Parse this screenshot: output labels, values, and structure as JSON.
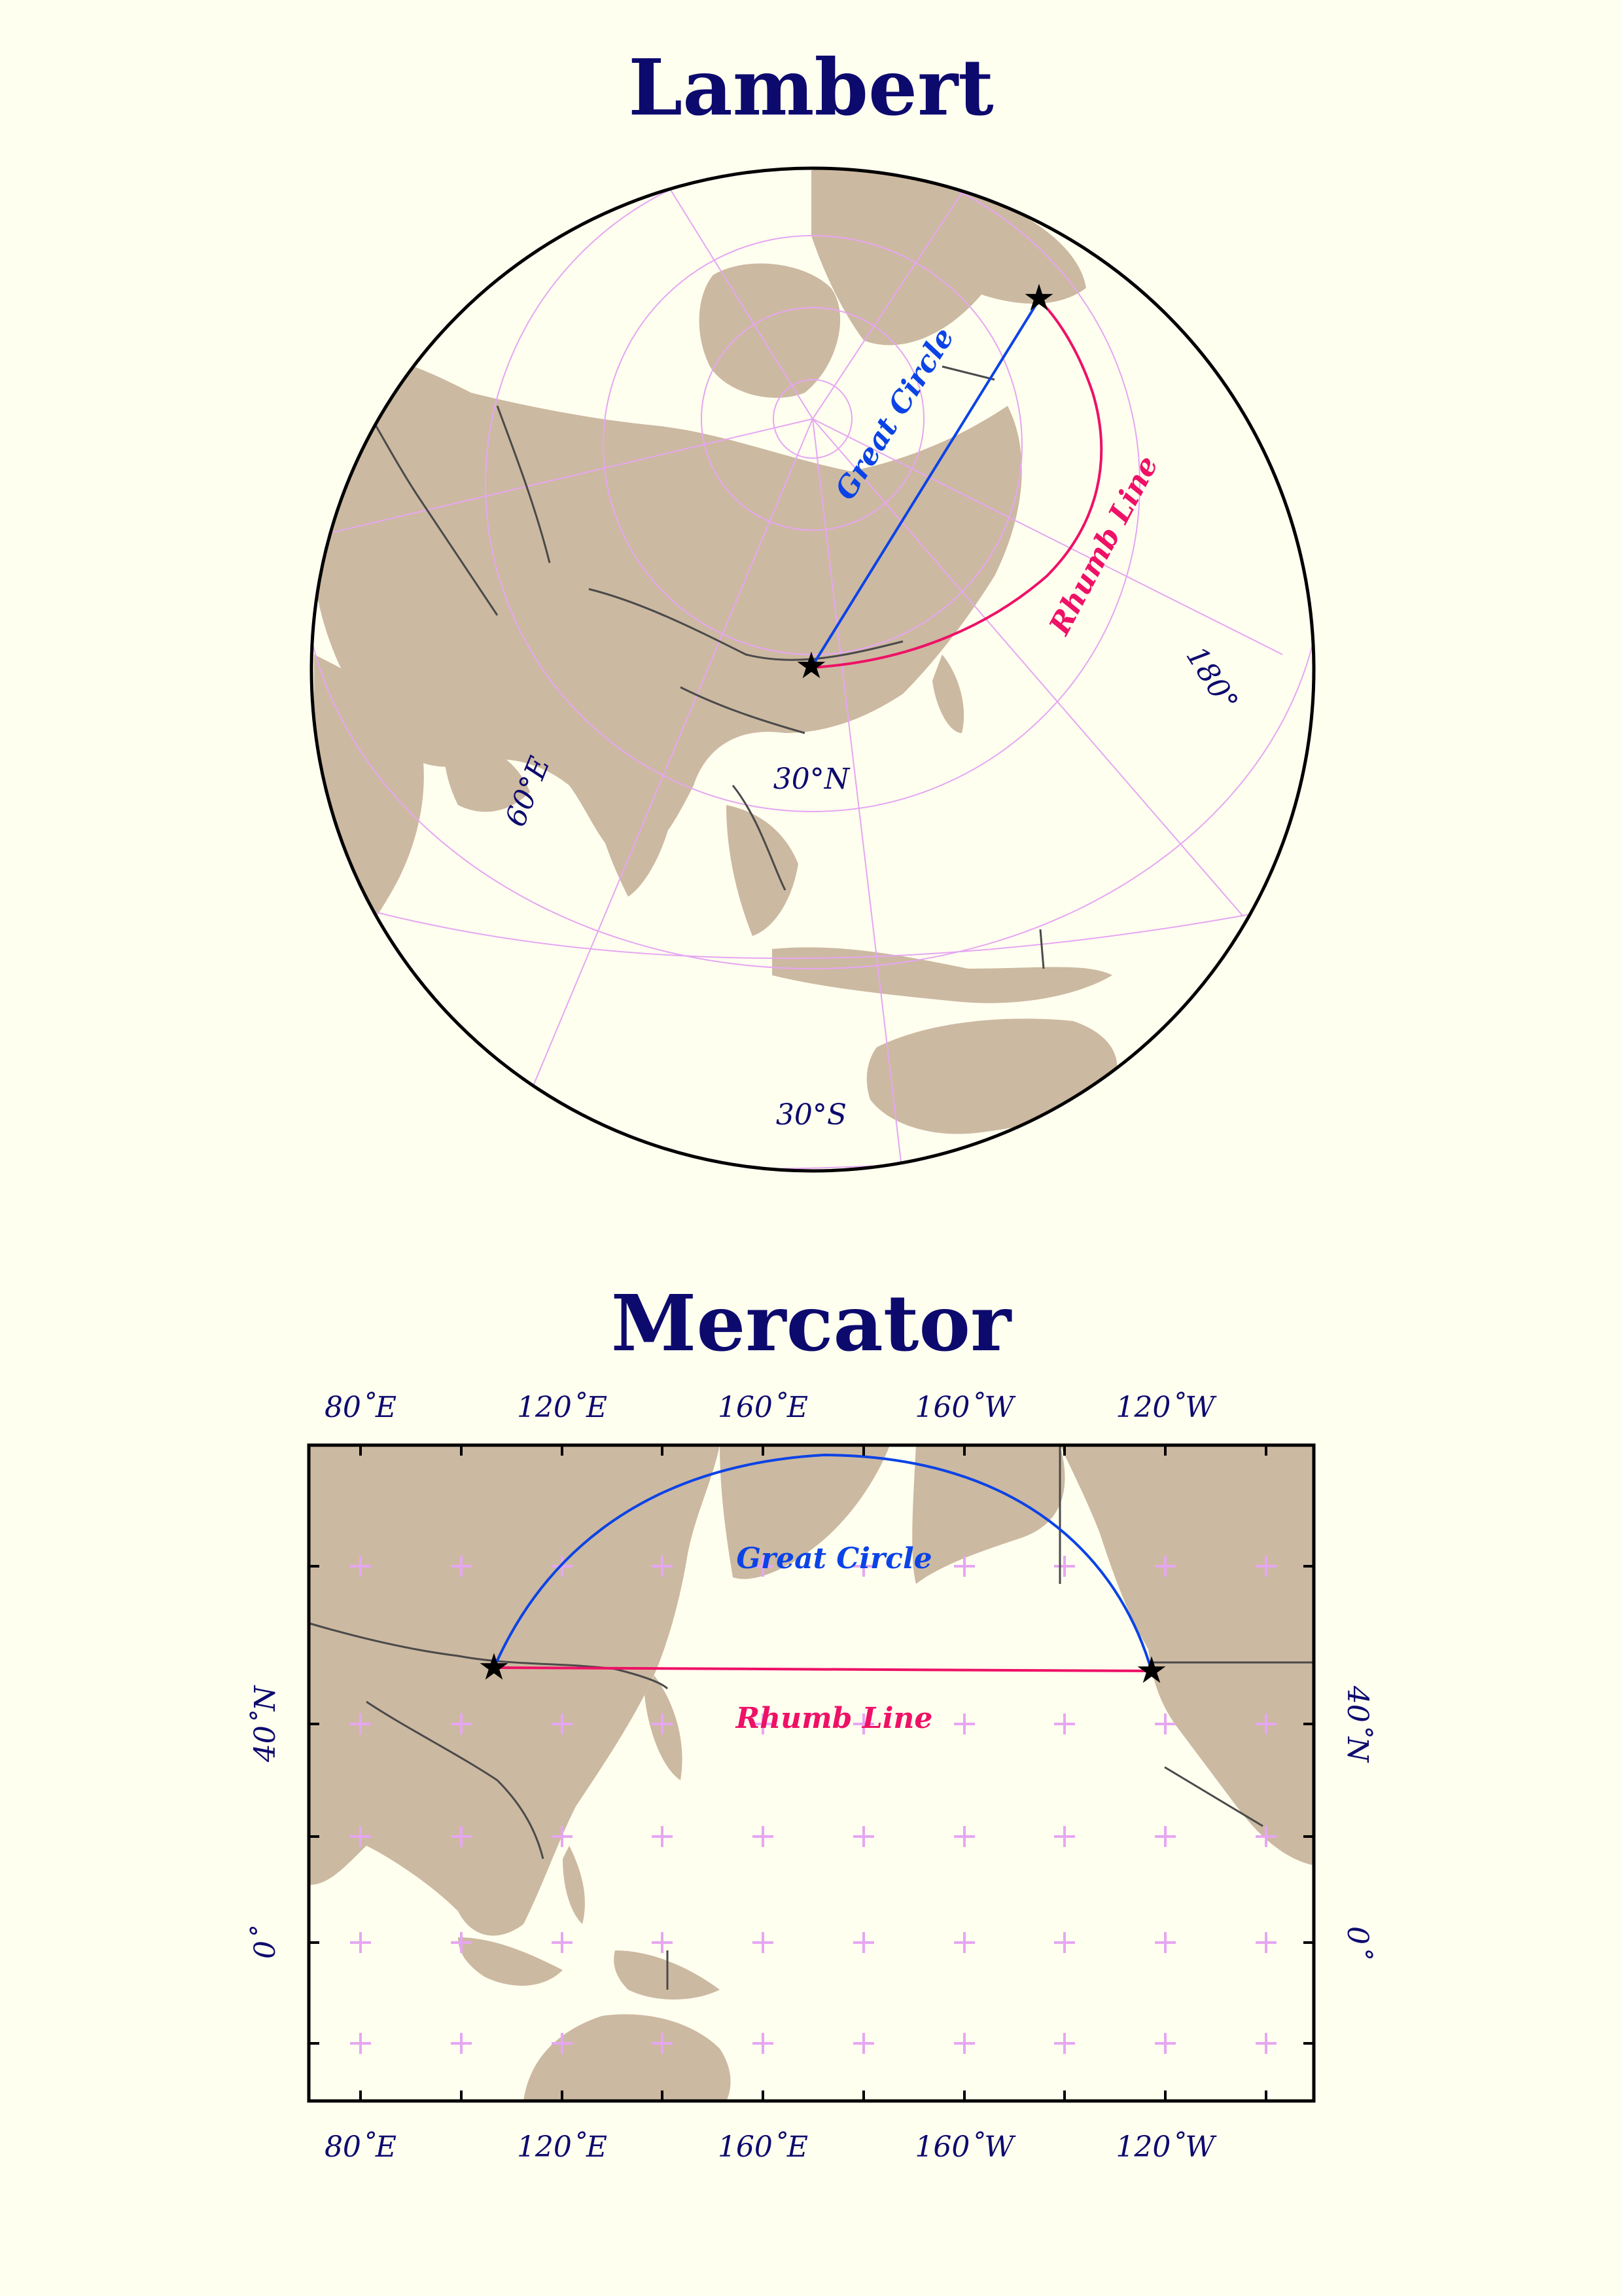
{
  "colors": {
    "background": "#fffff0",
    "land": "#ccb9a1",
    "border": "#4a4a4a",
    "graticule": "#e6a6f2",
    "great_circle": "#0b43e6",
    "rhumb_line": "#ee1166",
    "title": "#0d0a6e",
    "frame": "#000000"
  },
  "lambert": {
    "title": "Lambert",
    "great_circle_label": "Great Circle",
    "rhumb_line_label": "Rhumb Line",
    "grid_labels": {
      "lat_30n": "30°N",
      "lat_30s": "30°S",
      "lon_60e": "60°E",
      "lon_180": "180°"
    }
  },
  "mercator": {
    "title": "Mercator",
    "great_circle_label": "Great Circle",
    "rhumb_line_label": "Rhumb Line",
    "x_ticks": [
      "80˚E",
      "120˚E",
      "160˚E",
      "160˚W",
      "120˚W"
    ],
    "y_ticks": [
      "40˚N",
      "0˚"
    ]
  }
}
